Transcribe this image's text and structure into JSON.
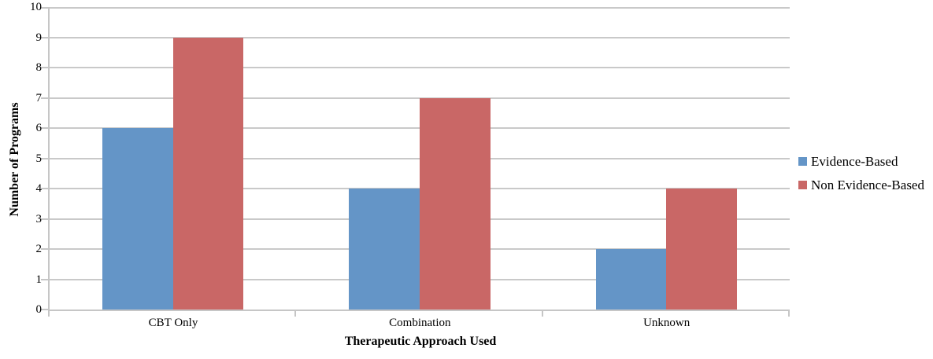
{
  "chart_data": {
    "type": "bar",
    "title": "",
    "categories": [
      "CBT Only",
      "Combination",
      "Unknown"
    ],
    "series": [
      {
        "name": "Evidence-Based",
        "color": "#6495c7",
        "values": [
          6,
          4,
          2
        ]
      },
      {
        "name": "Non Evidence-Based",
        "color": "#c96766",
        "values": [
          9,
          7,
          4
        ]
      }
    ],
    "xlabel": "Therapeutic Approach Used",
    "ylabel": "Number of Programs",
    "ylim": [
      0,
      10
    ],
    "yticks": [
      0,
      1,
      2,
      3,
      4,
      5,
      6,
      7,
      8,
      9,
      10
    ],
    "grid": "horizontal",
    "legend_position": "right",
    "gridline_color": "#c9c9c9",
    "axis_color": "#c6c6c6"
  }
}
